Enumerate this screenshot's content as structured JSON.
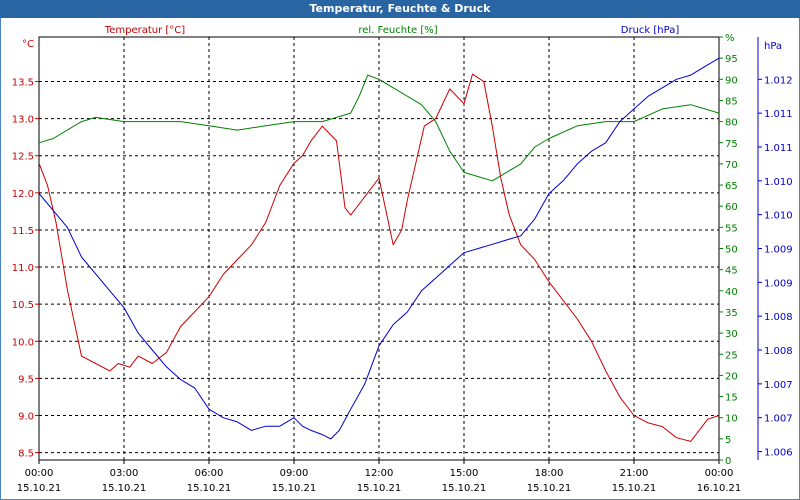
{
  "window": {
    "title": "Temperatur, Feuchte & Druck"
  },
  "chart_data": {
    "type": "line",
    "title": "Temperatur, Feuchte & Druck",
    "x_ticks": [
      {
        "time": "00:00",
        "date": "15.10.21"
      },
      {
        "time": "03:00",
        "date": "15.10.21"
      },
      {
        "time": "06:00",
        "date": "15.10.21"
      },
      {
        "time": "09:00",
        "date": "15.10.21"
      },
      {
        "time": "12:00",
        "date": "15.10.21"
      },
      {
        "time": "15:00",
        "date": "15.10.21"
      },
      {
        "time": "18:00",
        "date": "15.10.21"
      },
      {
        "time": "21:00",
        "date": "15.10.21"
      },
      {
        "time": "00:00",
        "date": "16.10.21"
      }
    ],
    "xlim": [
      0,
      24
    ],
    "grid": true,
    "axes": {
      "temperature": {
        "unit": "°C",
        "ylim": [
          8.4,
          14.1
        ],
        "color": "#cc0000",
        "ticks": [
          "8.5",
          "9.0",
          "9.5",
          "10.0",
          "10.5",
          "11.0",
          "11.5",
          "12.0",
          "12.5",
          "13.0",
          "13.5"
        ]
      },
      "humidity": {
        "unit": "%",
        "ylim": [
          0,
          100
        ],
        "color": "#008000",
        "ticks": [
          "0",
          "5",
          "10",
          "15",
          "20",
          "25",
          "30",
          "35",
          "40",
          "45",
          "50",
          "55",
          "60",
          "65",
          "70",
          "75",
          "80",
          "85",
          "90",
          "95",
          "%"
        ]
      },
      "pressure": {
        "unit": "hPa",
        "color": "#0000cc",
        "ticks": [
          "1.012",
          "1.011",
          "1.011",
          "1.010",
          "1.010",
          "1.009",
          "1.009",
          "1.008",
          "1.008",
          "1.007",
          "1.007",
          "1.006"
        ],
        "tick_humidity_positions": [
          90,
          82,
          74,
          66,
          58,
          50,
          42,
          34,
          26,
          18,
          10,
          2
        ]
      }
    },
    "series": [
      {
        "name": "Temperatur [°C]",
        "axis": "temperature",
        "color": "#cc0000",
        "x": [
          0,
          0.3,
          0.6,
          1.0,
          1.5,
          2.0,
          2.5,
          2.8,
          3.2,
          3.5,
          4.0,
          4.5,
          5.0,
          5.5,
          6.0,
          6.5,
          7.0,
          7.5,
          8.0,
          8.5,
          9.0,
          9.3,
          9.6,
          10.0,
          10.5,
          10.8,
          11.0,
          11.3,
          11.6,
          12.0,
          12.5,
          12.8,
          13.0,
          13.3,
          13.6,
          14.0,
          14.5,
          15.0,
          15.3,
          15.7,
          16.0,
          16.3,
          16.6,
          17.0,
          17.5,
          18.0,
          18.5,
          19.0,
          19.5,
          20.0,
          20.5,
          21.0,
          21.5,
          22.0,
          22.5,
          23.0,
          23.3,
          23.6,
          24.0
        ],
        "values": [
          12.4,
          12.1,
          11.6,
          10.7,
          9.8,
          9.7,
          9.6,
          9.7,
          9.65,
          9.8,
          9.7,
          9.85,
          10.2,
          10.4,
          10.6,
          10.9,
          11.1,
          11.3,
          11.6,
          12.1,
          12.4,
          12.5,
          12.7,
          12.9,
          12.7,
          11.8,
          11.7,
          11.85,
          12.0,
          12.2,
          11.3,
          11.5,
          11.9,
          12.4,
          12.9,
          13.0,
          13.4,
          13.2,
          13.6,
          13.5,
          12.9,
          12.2,
          11.7,
          11.3,
          11.1,
          10.8,
          10.55,
          10.3,
          10.0,
          9.6,
          9.25,
          9.0,
          8.9,
          8.85,
          8.7,
          8.65,
          8.8,
          8.95,
          9.0
        ],
        "legend_label": "Temperatur [°C]"
      },
      {
        "name": "rel. Feuchte [%]",
        "axis": "humidity",
        "color": "#008000",
        "x": [
          0,
          0.5,
          1.0,
          1.5,
          2.0,
          3.0,
          4.0,
          5.0,
          6.0,
          7.0,
          8.0,
          9.0,
          10.0,
          10.5,
          11.0,
          11.3,
          11.6,
          12.0,
          12.5,
          13.0,
          13.5,
          14.0,
          14.5,
          15.0,
          15.5,
          16.0,
          16.5,
          17.0,
          17.5,
          18.0,
          19.0,
          20.0,
          21.0,
          22.0,
          23.0,
          24.0
        ],
        "values": [
          75,
          76,
          78,
          80,
          81,
          80,
          80,
          80,
          79,
          78,
          79,
          80,
          80,
          81,
          82,
          86,
          91,
          90,
          88,
          86,
          84,
          80,
          73,
          68,
          67,
          66,
          68,
          70,
          74,
          76,
          79,
          80,
          80,
          83,
          84,
          82
        ],
        "legend_label": "rel. Feuchte [%]"
      },
      {
        "name": "Druck [hPa]",
        "axis": "pressure",
        "color": "#0000cc",
        "x": [
          0,
          0.5,
          1.0,
          1.5,
          2.0,
          2.5,
          3.0,
          3.5,
          4.0,
          4.5,
          5.0,
          5.5,
          6.0,
          6.5,
          7.0,
          7.5,
          8.0,
          8.5,
          9.0,
          9.3,
          9.6,
          10.0,
          10.3,
          10.6,
          11.0,
          11.5,
          12.0,
          12.5,
          13.0,
          13.5,
          14.0,
          14.5,
          15.0,
          15.5,
          16.0,
          16.5,
          17.0,
          17.5,
          18.0,
          18.5,
          19.0,
          19.5,
          20.0,
          20.5,
          21.0,
          21.5,
          22.0,
          22.5,
          23.0,
          23.5,
          24.0
        ],
        "values": [
          63,
          59,
          55,
          48,
          44,
          40,
          36,
          30,
          26,
          22,
          19,
          17,
          12,
          10,
          9,
          7,
          8,
          8,
          10,
          8,
          7,
          6,
          5,
          7,
          12,
          18,
          27,
          32,
          35,
          40,
          43,
          46,
          49,
          50,
          51,
          52,
          53,
          57,
          63,
          66,
          70,
          73,
          75,
          80,
          83,
          86,
          88,
          90,
          91,
          93,
          95
        ],
        "legend_label": "Druck [hPa]"
      }
    ]
  }
}
